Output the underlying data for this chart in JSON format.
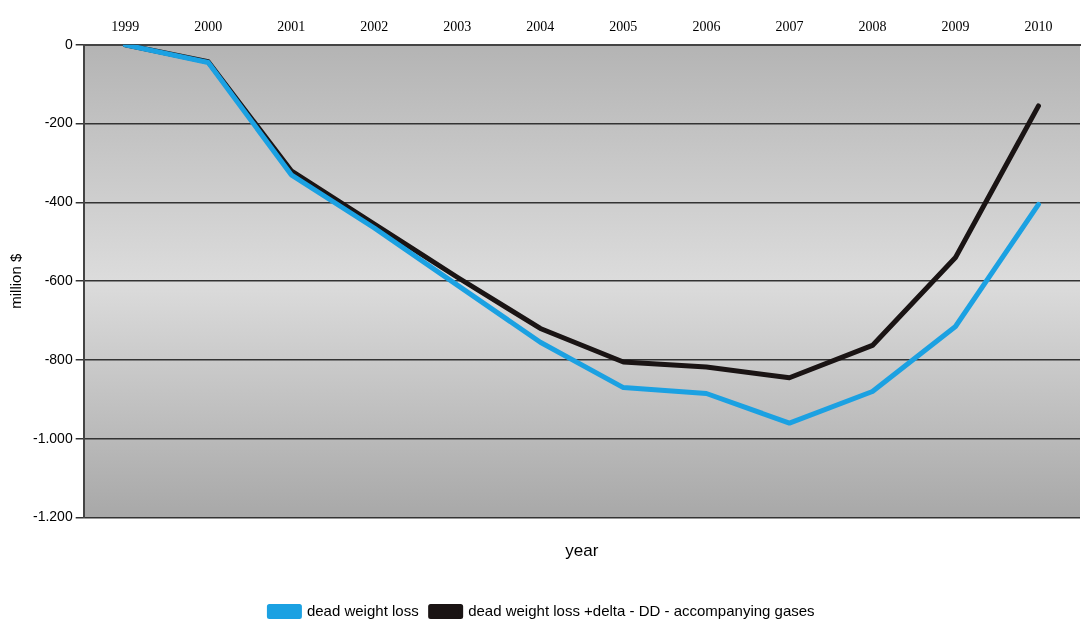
{
  "chart_data": {
    "type": "line",
    "xlabel": "year",
    "ylabel": "million $",
    "categories": [
      "1999",
      "2000",
      "2001",
      "2002",
      "2003",
      "2004",
      "2005",
      "2006",
      "2007",
      "2008",
      "2009",
      "2010"
    ],
    "series": [
      {
        "name": "dead weight loss",
        "color": "#1ba1e2",
        "values": [
          0,
          -45,
          -330,
          -465,
          -610,
          -755,
          -870,
          -885,
          -960,
          -880,
          -715,
          -405
        ]
      },
      {
        "name": "dead weight loss +delta - DD - accompanying gases",
        "color": "#1a1414",
        "values": [
          0,
          -43,
          -320,
          -455,
          -590,
          -720,
          -805,
          -818,
          -845,
          -763,
          -540,
          -155
        ]
      }
    ],
    "ylim": [
      -1200,
      0
    ],
    "yticks": [
      {
        "value": 0,
        "label": "0"
      },
      {
        "value": -200,
        "label": "-200"
      },
      {
        "value": -400,
        "label": "-400"
      },
      {
        "value": -600,
        "label": "-600"
      },
      {
        "value": -800,
        "label": "-800"
      },
      {
        "value": -1000,
        "label": "-1.000"
      },
      {
        "value": -1200,
        "label": "-1.200"
      }
    ],
    "grid": "y",
    "legend": "bottom",
    "marker": "none",
    "line_style": "solid"
  }
}
